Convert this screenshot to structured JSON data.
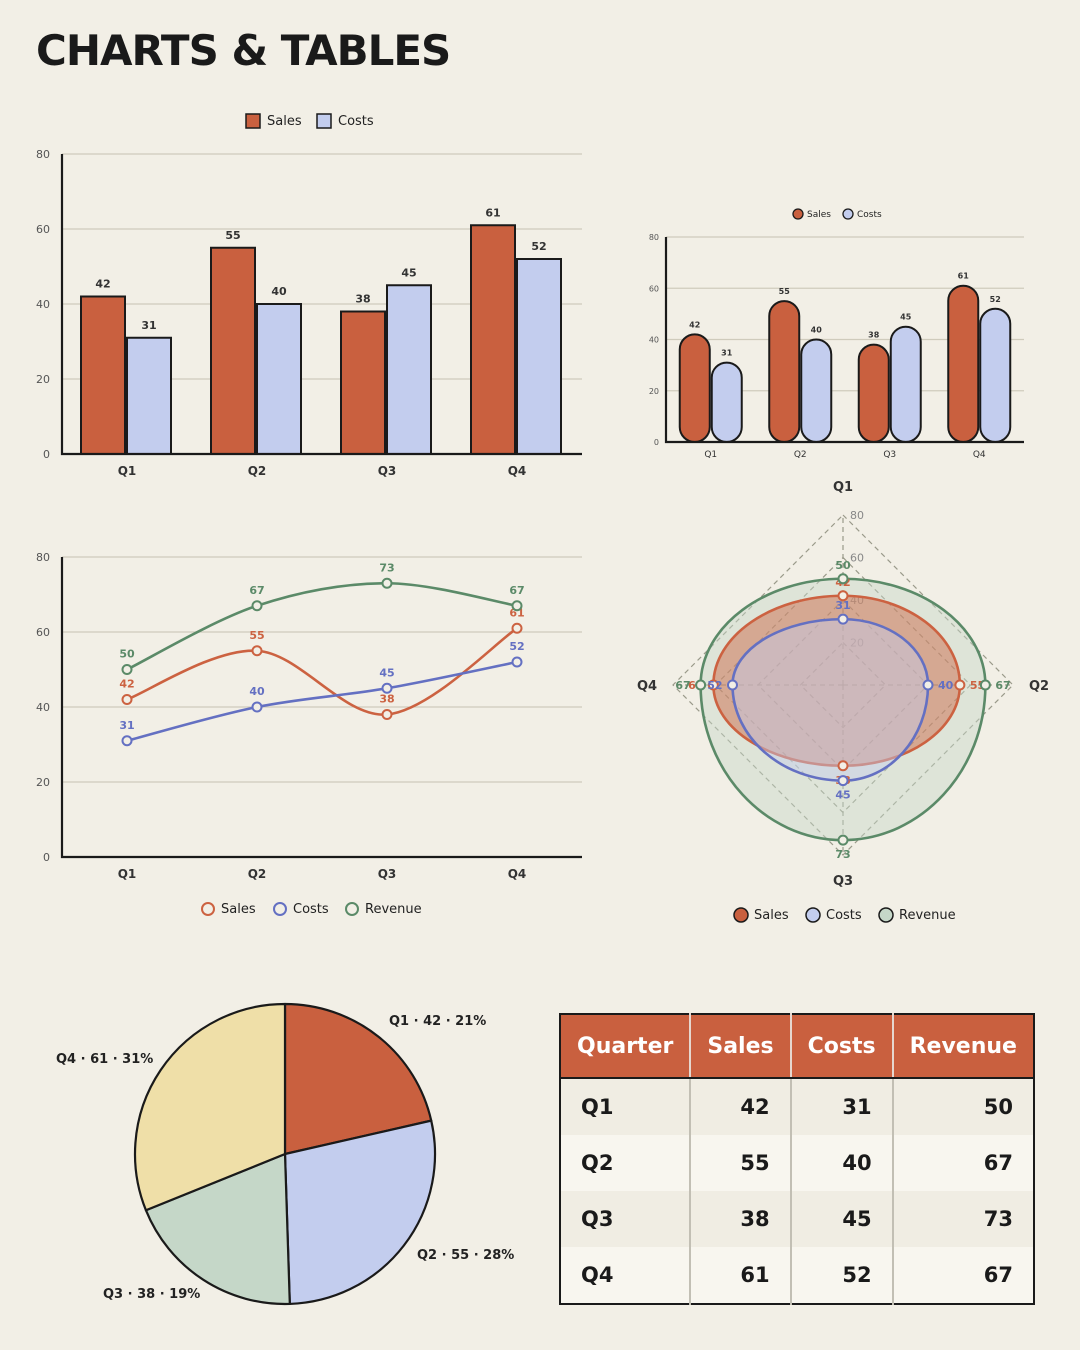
{
  "page_title": "CHARTS & TABLES",
  "colors": {
    "sales": "#c9603f",
    "costs": "#c3cdee",
    "revenue": "#c5d7c8",
    "pie_q4": "#efdfa8",
    "line_sales": "#cc6241",
    "line_costs": "#6470c2",
    "line_revenue": "#5b8a68"
  },
  "chart_data": [
    {
      "type": "bar",
      "categories": [
        "Q1",
        "Q2",
        "Q3",
        "Q4"
      ],
      "series": [
        {
          "name": "Sales",
          "values": [
            42,
            55,
            38,
            61
          ]
        },
        {
          "name": "Costs",
          "values": [
            31,
            40,
            45,
            52
          ]
        }
      ],
      "ylim": [
        0,
        80
      ],
      "yticks": [
        0,
        20,
        40,
        60,
        80
      ],
      "legend": "top-center",
      "grid": true
    },
    {
      "type": "bar",
      "style": "rounded",
      "categories": [
        "Q1",
        "Q2",
        "Q3",
        "Q4"
      ],
      "series": [
        {
          "name": "Sales",
          "values": [
            42,
            55,
            38,
            61
          ]
        },
        {
          "name": "Costs",
          "values": [
            31,
            40,
            45,
            52
          ]
        }
      ],
      "ylim": [
        0,
        80
      ],
      "yticks": [
        0,
        20,
        40,
        60,
        80
      ],
      "legend": "top-center",
      "grid": true
    },
    {
      "type": "line",
      "categories": [
        "Q1",
        "Q2",
        "Q3",
        "Q4"
      ],
      "series": [
        {
          "name": "Sales",
          "values": [
            42,
            55,
            38,
            61
          ]
        },
        {
          "name": "Costs",
          "values": [
            31,
            40,
            45,
            52
          ]
        },
        {
          "name": "Revenue",
          "values": [
            50,
            67,
            73,
            67
          ]
        }
      ],
      "ylim": [
        0,
        80
      ],
      "yticks": [
        0,
        20,
        40,
        60,
        80
      ],
      "legend": "bottom-center",
      "grid": true
    },
    {
      "type": "radar",
      "axes": [
        "Q1",
        "Q2",
        "Q3",
        "Q4"
      ],
      "series": [
        {
          "name": "Sales",
          "values": [
            42,
            55,
            38,
            61
          ]
        },
        {
          "name": "Costs",
          "values": [
            31,
            40,
            45,
            52
          ]
        },
        {
          "name": "Revenue",
          "values": [
            50,
            67,
            73,
            67
          ]
        }
      ],
      "rlim": [
        0,
        80
      ],
      "rticks": [
        20,
        40,
        60,
        80
      ],
      "legend": "bottom-center"
    },
    {
      "type": "pie",
      "slices": [
        {
          "label": "Q1 · 42 · 21%",
          "value": 42
        },
        {
          "label": "Q2 · 55 · 28%",
          "value": 55
        },
        {
          "label": "Q3 · 38 · 19%",
          "value": 38
        },
        {
          "label": "Q4 · 61 · 31%",
          "value": 61
        }
      ]
    }
  ],
  "table": {
    "headers": [
      "Quarter",
      "Sales",
      "Costs",
      "Revenue"
    ],
    "rows": [
      [
        "Q1",
        "42",
        "31",
        "50"
      ],
      [
        "Q2",
        "55",
        "40",
        "67"
      ],
      [
        "Q3",
        "38",
        "45",
        "73"
      ],
      [
        "Q4",
        "61",
        "52",
        "67"
      ]
    ]
  }
}
